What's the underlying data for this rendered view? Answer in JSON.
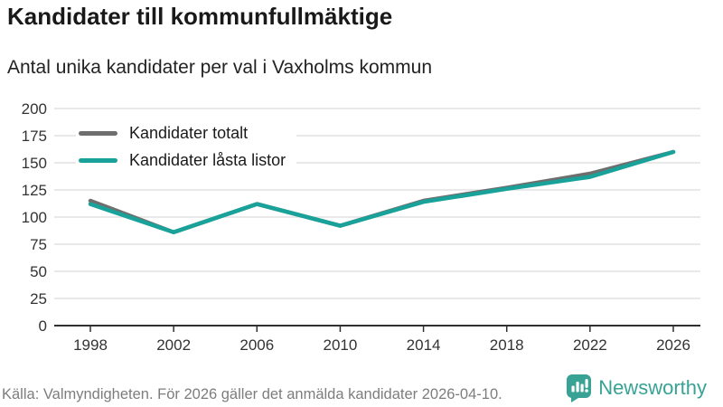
{
  "header": {
    "title": "Kandidater till kommunfullmäktige",
    "subtitle": "Antal unika kandidater per val i Vaxholms kommun"
  },
  "chart_data": {
    "type": "line",
    "x": [
      1998,
      2002,
      2006,
      2010,
      2014,
      2018,
      2022,
      2026
    ],
    "series": [
      {
        "name": "Kandidater totalt",
        "color": "#6e6e6e",
        "values": [
          115,
          86,
          112,
          92,
          115,
          127,
          140,
          160
        ]
      },
      {
        "name": "Kandidater låsta listor",
        "color": "#18a29a",
        "values": [
          112,
          86,
          112,
          92,
          114,
          126,
          137,
          160
        ]
      }
    ],
    "ylim": [
      0,
      200
    ],
    "yticks": [
      0,
      25,
      50,
      75,
      100,
      125,
      150,
      175,
      200
    ],
    "grid": true,
    "legend_position": "top-left",
    "xlabel": "",
    "ylabel": ""
  },
  "footer": {
    "source": "Källa: Valmyndigheten. För 2026 gäller det anmälda kandidater 2026-04-10.",
    "brand": "Newsworthy"
  },
  "colors": {
    "accent_teal": "#18a29a",
    "series_gray": "#6e6e6e",
    "brand_teal": "#38a295",
    "grid": "#e2e2e2",
    "axis": "#2f2f2f",
    "tick_label": "#333333"
  }
}
